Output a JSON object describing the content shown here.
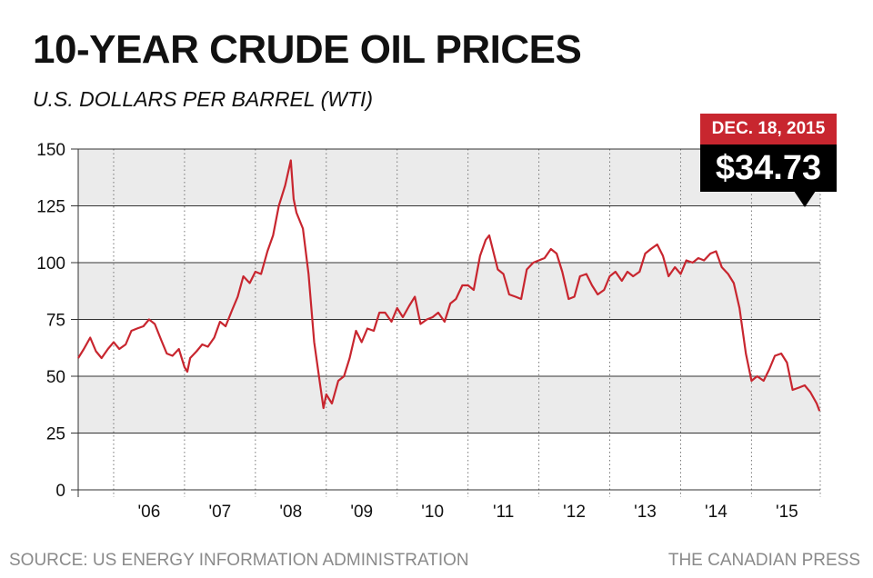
{
  "header": {
    "title": "10-YEAR CRUDE OIL PRICES",
    "subtitle": "U.S. DOLLARS PER BARREL (WTI)"
  },
  "callout": {
    "date": "DEC. 18, 2015",
    "price": "$34.73"
  },
  "footer": {
    "source": "SOURCE: US ENERGY INFORMATION ADMINISTRATION",
    "credit": "THE CANADIAN PRESS"
  },
  "colors": {
    "line": "#c8262f",
    "band": "#ebebeb",
    "callout_top": "#c8262f",
    "callout_bottom": "#000000"
  },
  "chart_data": {
    "type": "line",
    "title": "10-YEAR CRUDE OIL PRICES",
    "subtitle": "U.S. DOLLARS PER BARREL (WTI)",
    "ylim": [
      0,
      150
    ],
    "yticks": [
      0,
      25,
      50,
      75,
      100,
      125,
      150
    ],
    "xlim": [
      2005.5,
      2015.97
    ],
    "xtick_labels": [
      "'06",
      "'07",
      "'08",
      "'09",
      "'10",
      "'11",
      "'12",
      "'13",
      "'14",
      "'15"
    ],
    "xtick_years": [
      2006,
      2007,
      2008,
      2009,
      2010,
      2011,
      2012,
      2013,
      2014,
      2015
    ],
    "grid": "horizontal bands and dotted vertical year lines",
    "series": [
      {
        "values": [
          [
            2005.5,
            58
          ],
          [
            2005.58,
            62
          ],
          [
            2005.67,
            67
          ],
          [
            2005.75,
            61
          ],
          [
            2005.83,
            58
          ],
          [
            2005.92,
            62
          ],
          [
            2006.0,
            65
          ],
          [
            2006.08,
            62
          ],
          [
            2006.17,
            64
          ],
          [
            2006.25,
            70
          ],
          [
            2006.33,
            71
          ],
          [
            2006.42,
            72
          ],
          [
            2006.5,
            75
          ],
          [
            2006.58,
            73
          ],
          [
            2006.67,
            66
          ],
          [
            2006.75,
            60
          ],
          [
            2006.83,
            59
          ],
          [
            2006.92,
            62
          ],
          [
            2007.0,
            54
          ],
          [
            2007.04,
            52
          ],
          [
            2007.08,
            58
          ],
          [
            2007.17,
            61
          ],
          [
            2007.25,
            64
          ],
          [
            2007.33,
            63
          ],
          [
            2007.42,
            67
          ],
          [
            2007.5,
            74
          ],
          [
            2007.58,
            72
          ],
          [
            2007.67,
            79
          ],
          [
            2007.75,
            85
          ],
          [
            2007.83,
            94
          ],
          [
            2007.92,
            91
          ],
          [
            2008.0,
            96
          ],
          [
            2008.08,
            95
          ],
          [
            2008.17,
            105
          ],
          [
            2008.25,
            112
          ],
          [
            2008.33,
            125
          ],
          [
            2008.42,
            134
          ],
          [
            2008.5,
            145
          ],
          [
            2008.54,
            128
          ],
          [
            2008.58,
            122
          ],
          [
            2008.67,
            115
          ],
          [
            2008.75,
            95
          ],
          [
            2008.83,
            65
          ],
          [
            2008.92,
            45
          ],
          [
            2008.96,
            36
          ],
          [
            2009.0,
            42
          ],
          [
            2009.08,
            38
          ],
          [
            2009.17,
            48
          ],
          [
            2009.25,
            50
          ],
          [
            2009.33,
            58
          ],
          [
            2009.42,
            70
          ],
          [
            2009.5,
            65
          ],
          [
            2009.58,
            71
          ],
          [
            2009.67,
            70
          ],
          [
            2009.75,
            78
          ],
          [
            2009.83,
            78
          ],
          [
            2009.92,
            74
          ],
          [
            2010.0,
            80
          ],
          [
            2010.08,
            76
          ],
          [
            2010.17,
            81
          ],
          [
            2010.25,
            85
          ],
          [
            2010.33,
            73
          ],
          [
            2010.42,
            75
          ],
          [
            2010.5,
            76
          ],
          [
            2010.58,
            78
          ],
          [
            2010.67,
            74
          ],
          [
            2010.75,
            82
          ],
          [
            2010.83,
            84
          ],
          [
            2010.92,
            90
          ],
          [
            2011.0,
            90
          ],
          [
            2011.08,
            88
          ],
          [
            2011.17,
            103
          ],
          [
            2011.25,
            110
          ],
          [
            2011.3,
            112
          ],
          [
            2011.42,
            97
          ],
          [
            2011.5,
            95
          ],
          [
            2011.58,
            86
          ],
          [
            2011.67,
            85
          ],
          [
            2011.75,
            84
          ],
          [
            2011.83,
            97
          ],
          [
            2011.92,
            100
          ],
          [
            2012.0,
            101
          ],
          [
            2012.08,
            102
          ],
          [
            2012.17,
            106
          ],
          [
            2012.25,
            104
          ],
          [
            2012.33,
            96
          ],
          [
            2012.42,
            84
          ],
          [
            2012.5,
            85
          ],
          [
            2012.58,
            94
          ],
          [
            2012.67,
            95
          ],
          [
            2012.75,
            90
          ],
          [
            2012.83,
            86
          ],
          [
            2012.92,
            88
          ],
          [
            2013.0,
            94
          ],
          [
            2013.08,
            96
          ],
          [
            2013.17,
            92
          ],
          [
            2013.25,
            96
          ],
          [
            2013.33,
            94
          ],
          [
            2013.42,
            96
          ],
          [
            2013.5,
            104
          ],
          [
            2013.58,
            106
          ],
          [
            2013.67,
            108
          ],
          [
            2013.75,
            103
          ],
          [
            2013.83,
            94
          ],
          [
            2013.92,
            98
          ],
          [
            2014.0,
            95
          ],
          [
            2014.08,
            101
          ],
          [
            2014.17,
            100
          ],
          [
            2014.25,
            102
          ],
          [
            2014.33,
            101
          ],
          [
            2014.42,
            104
          ],
          [
            2014.5,
            105
          ],
          [
            2014.58,
            98
          ],
          [
            2014.67,
            95
          ],
          [
            2014.75,
            91
          ],
          [
            2014.83,
            80
          ],
          [
            2014.92,
            60
          ],
          [
            2015.0,
            48
          ],
          [
            2015.08,
            50
          ],
          [
            2015.17,
            48
          ],
          [
            2015.25,
            53
          ],
          [
            2015.33,
            59
          ],
          [
            2015.42,
            60
          ],
          [
            2015.5,
            56
          ],
          [
            2015.58,
            44
          ],
          [
            2015.67,
            45
          ],
          [
            2015.75,
            46
          ],
          [
            2015.83,
            43
          ],
          [
            2015.92,
            38
          ],
          [
            2015.96,
            34.73
          ]
        ]
      }
    ]
  }
}
